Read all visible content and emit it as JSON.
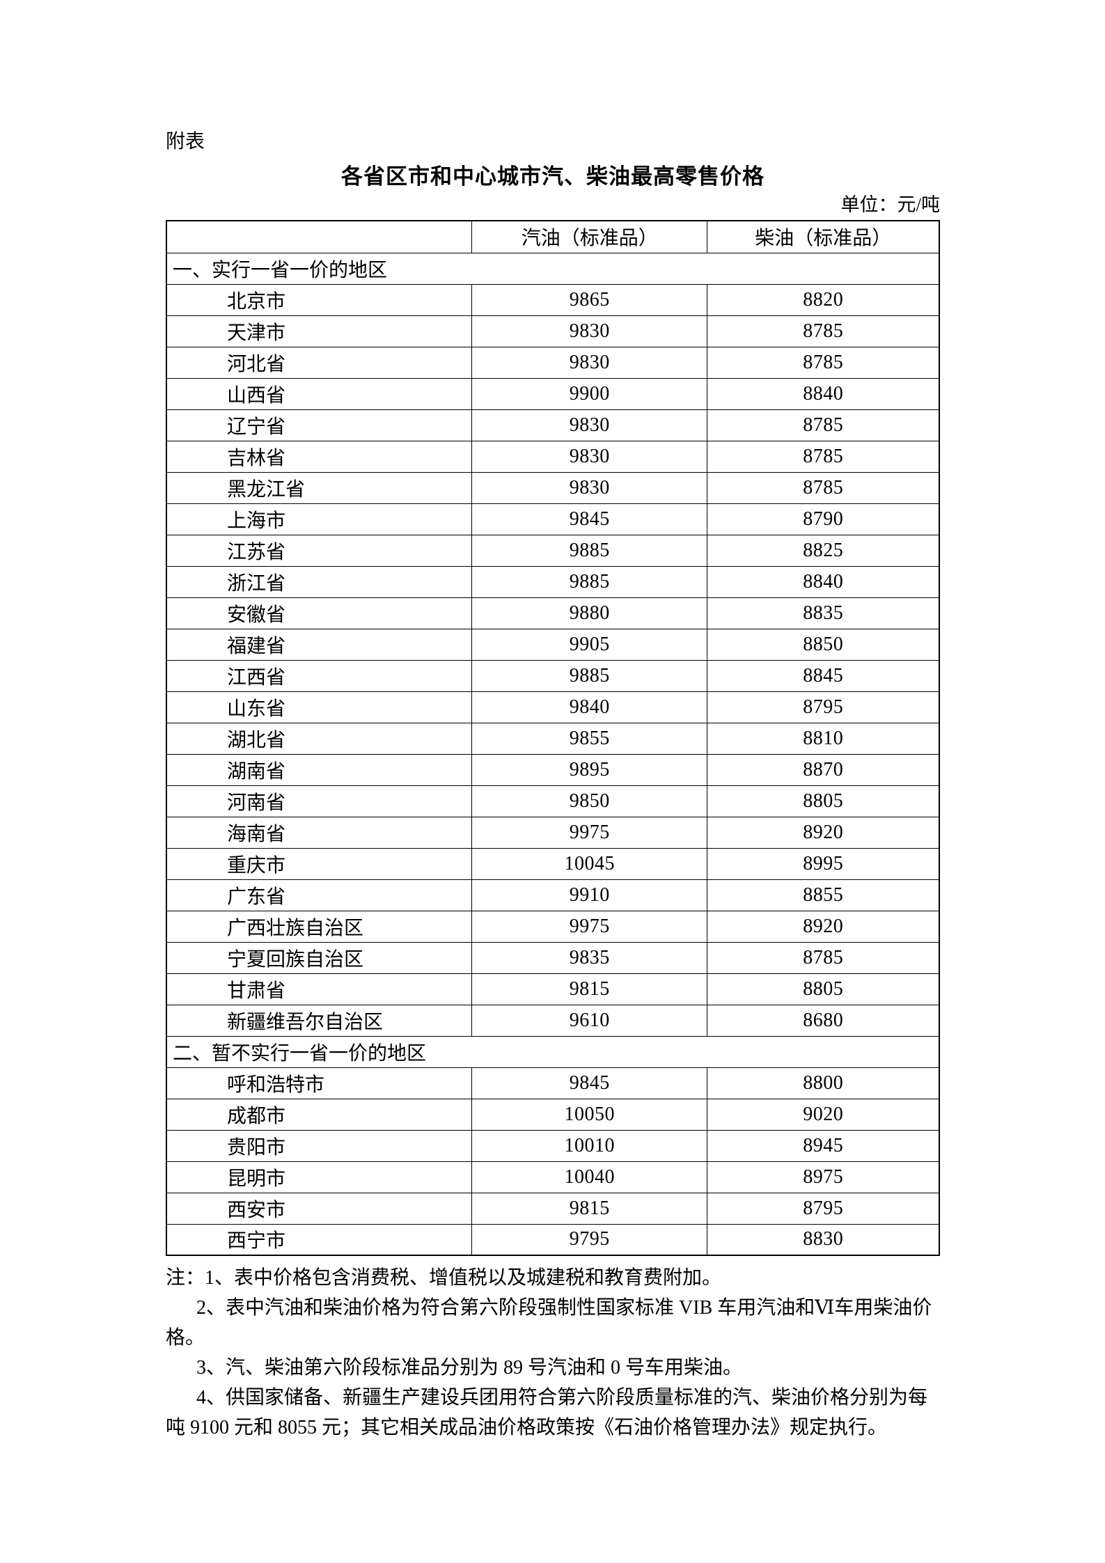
{
  "page": {
    "appendix_label": "附表",
    "title": "各省区市和中心城市汽、柴油最高零售价格",
    "unit_label": "单位：元/吨"
  },
  "table": {
    "col_region": "",
    "col_gasoline": "汽油（标准品）",
    "col_diesel": "柴油（标准品）",
    "sections": [
      {
        "label": "一、实行一省一价的地区",
        "rows": [
          {
            "region": "北京市",
            "gasoline": "9865",
            "diesel": "8820"
          },
          {
            "region": "天津市",
            "gasoline": "9830",
            "diesel": "8785"
          },
          {
            "region": "河北省",
            "gasoline": "9830",
            "diesel": "8785"
          },
          {
            "region": "山西省",
            "gasoline": "9900",
            "diesel": "8840"
          },
          {
            "region": "辽宁省",
            "gasoline": "9830",
            "diesel": "8785"
          },
          {
            "region": "吉林省",
            "gasoline": "9830",
            "diesel": "8785"
          },
          {
            "region": "黑龙江省",
            "gasoline": "9830",
            "diesel": "8785"
          },
          {
            "region": "上海市",
            "gasoline": "9845",
            "diesel": "8790"
          },
          {
            "region": "江苏省",
            "gasoline": "9885",
            "diesel": "8825"
          },
          {
            "region": "浙江省",
            "gasoline": "9885",
            "diesel": "8840"
          },
          {
            "region": "安徽省",
            "gasoline": "9880",
            "diesel": "8835"
          },
          {
            "region": "福建省",
            "gasoline": "9905",
            "diesel": "8850"
          },
          {
            "region": "江西省",
            "gasoline": "9885",
            "diesel": "8845"
          },
          {
            "region": "山东省",
            "gasoline": "9840",
            "diesel": "8795"
          },
          {
            "region": "湖北省",
            "gasoline": "9855",
            "diesel": "8810"
          },
          {
            "region": "湖南省",
            "gasoline": "9895",
            "diesel": "8870"
          },
          {
            "region": "河南省",
            "gasoline": "9850",
            "diesel": "8805"
          },
          {
            "region": "海南省",
            "gasoline": "9975",
            "diesel": "8920"
          },
          {
            "region": "重庆市",
            "gasoline": "10045",
            "diesel": "8995"
          },
          {
            "region": "广东省",
            "gasoline": "9910",
            "diesel": "8855"
          },
          {
            "region": "广西壮族自治区",
            "gasoline": "9975",
            "diesel": "8920"
          },
          {
            "region": "宁夏回族自治区",
            "gasoline": "9835",
            "diesel": "8785"
          },
          {
            "region": "甘肃省",
            "gasoline": "9815",
            "diesel": "8805"
          },
          {
            "region": "新疆维吾尔自治区",
            "gasoline": "9610",
            "diesel": "8680"
          }
        ]
      },
      {
        "label": "二、暂不实行一省一价的地区",
        "rows": [
          {
            "region": "呼和浩特市",
            "gasoline": "9845",
            "diesel": "8800"
          },
          {
            "region": "成都市",
            "gasoline": "10050",
            "diesel": "9020"
          },
          {
            "region": "贵阳市",
            "gasoline": "10010",
            "diesel": "8945"
          },
          {
            "region": "昆明市",
            "gasoline": "10040",
            "diesel": "8975"
          },
          {
            "region": "西安市",
            "gasoline": "9815",
            "diesel": "8795"
          },
          {
            "region": "西宁市",
            "gasoline": "9795",
            "diesel": "8830"
          }
        ]
      }
    ]
  },
  "notes": {
    "lines": [
      {
        "text": "注：1、表中价格包含消费税、增值税以及城建税和教育费附加。",
        "indent": false
      },
      {
        "text": "2、表中汽油和柴油价格为符合第六阶段强制性国家标准 VIB 车用汽油和Ⅵ车用柴油价",
        "indent": true
      },
      {
        "text": "格。",
        "indent": false
      },
      {
        "text": "3、汽、柴油第六阶段标准品分别为 89 号汽油和 0 号车用柴油。",
        "indent": true
      },
      {
        "text": "4、供国家储备、新疆生产建设兵团用符合第六阶段质量标准的汽、柴油价格分别为每",
        "indent": true
      },
      {
        "text": "吨 9100 元和 8055 元；其它相关成品油价格政策按《石油价格管理办法》规定执行。",
        "indent": false
      }
    ]
  }
}
